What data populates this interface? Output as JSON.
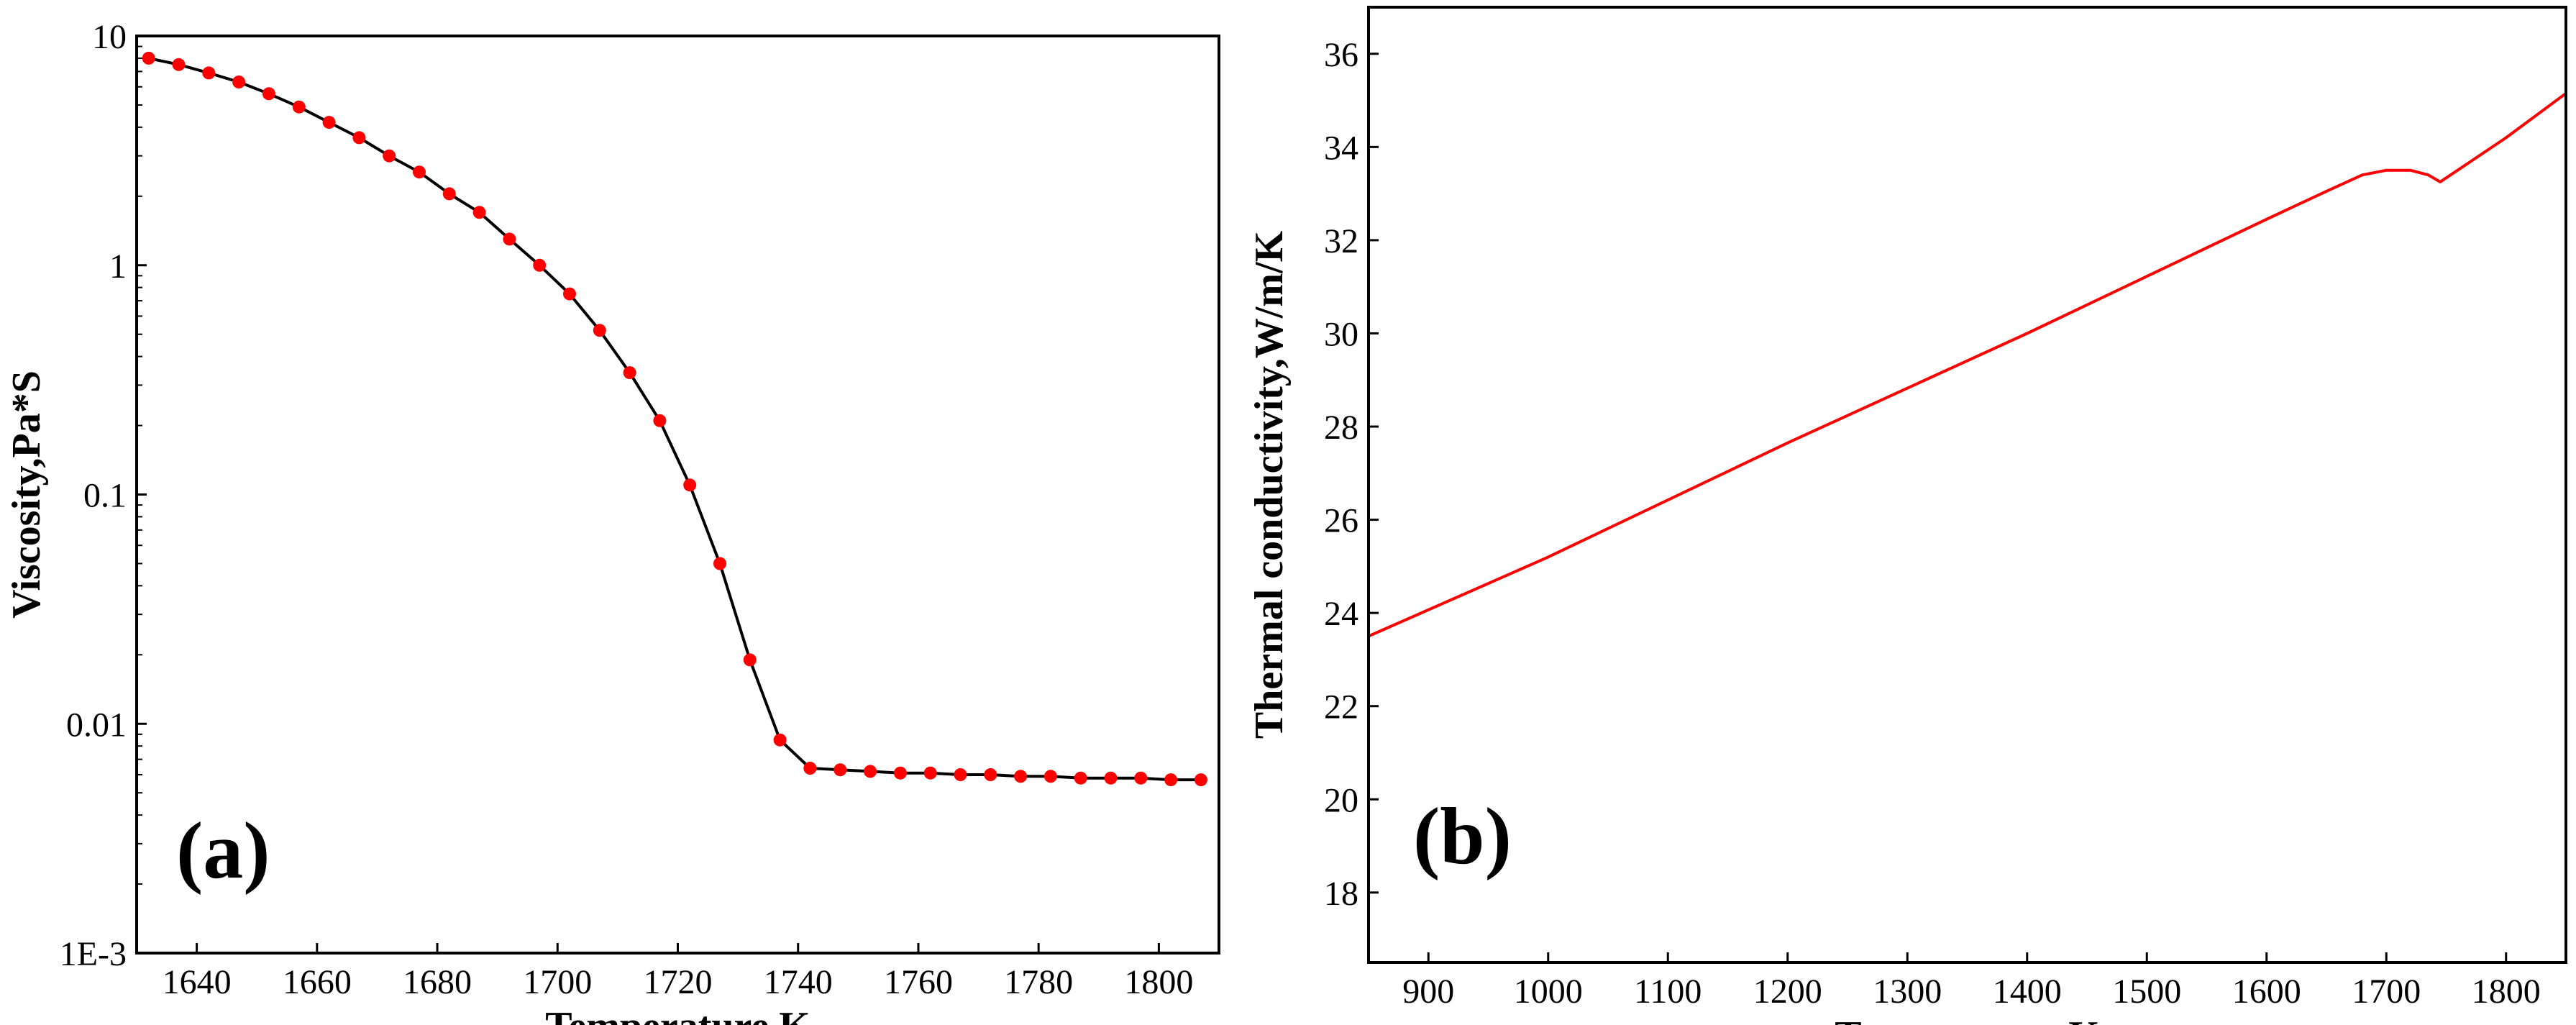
{
  "chart_data": [
    {
      "type": "line",
      "panel_label": "(a)",
      "xlabel": "Temperature,K",
      "ylabel": "Viscosity,Pa*S",
      "yscale": "log",
      "xlim": [
        1630,
        1810
      ],
      "ylim": [
        0.001,
        10
      ],
      "x_ticks": [
        1640,
        1660,
        1680,
        1700,
        1720,
        1740,
        1760,
        1780,
        1800
      ],
      "x_tick_labels": [
        "1640",
        "1660",
        "1680",
        "1700",
        "1720",
        "1740",
        "1760",
        "1780",
        "1800"
      ],
      "y_ticks": [
        0.001,
        0.01,
        0.1,
        1,
        10
      ],
      "y_tick_labels": [
        "1E-3",
        "0.01",
        "0.1",
        "1",
        "10"
      ],
      "series": [
        {
          "name": "viscosity",
          "line_color": "#000000",
          "marker_color": "#ff0000",
          "x": [
            1632,
            1637,
            1642,
            1647,
            1652,
            1657,
            1662,
            1667,
            1672,
            1677,
            1682,
            1687,
            1692,
            1697,
            1702,
            1707,
            1712,
            1717,
            1722,
            1727,
            1732,
            1737,
            1742,
            1747,
            1752,
            1757,
            1762,
            1767,
            1772,
            1777,
            1782,
            1787,
            1792,
            1797,
            1802,
            1807
          ],
          "y": [
            8.0,
            7.5,
            6.9,
            6.3,
            5.6,
            4.9,
            4.2,
            3.6,
            3.0,
            2.55,
            2.05,
            1.7,
            1.3,
            1.0,
            0.75,
            0.52,
            0.34,
            0.21,
            0.11,
            0.05,
            0.019,
            0.0085,
            0.0064,
            0.0063,
            0.0062,
            0.0061,
            0.0061,
            0.006,
            0.006,
            0.0059,
            0.0059,
            0.0058,
            0.0058,
            0.0058,
            0.0057,
            0.0057
          ]
        }
      ]
    },
    {
      "type": "line",
      "panel_label": "(b)",
      "xlabel": "Temperature,K",
      "ylabel": "Thermal conductivity,W/m/K",
      "xlim": [
        850,
        1850
      ],
      "ylim": [
        16.5,
        37
      ],
      "x_ticks": [
        900,
        1000,
        1100,
        1200,
        1300,
        1400,
        1500,
        1600,
        1700,
        1800
      ],
      "x_tick_labels": [
        "900",
        "1000",
        "1100",
        "1200",
        "1300",
        "1400",
        "1500",
        "1600",
        "1700",
        "1800"
      ],
      "y_ticks": [
        18,
        20,
        22,
        24,
        26,
        28,
        30,
        32,
        34,
        36
      ],
      "y_tick_labels": [
        "18",
        "20",
        "22",
        "24",
        "26",
        "28",
        "30",
        "32",
        "34",
        "36"
      ],
      "series": [
        {
          "name": "thermal conductivity",
          "line_color": "#ff0000",
          "x": [
            850,
            1000,
            1200,
            1400,
            1600,
            1650,
            1680,
            1700,
            1720,
            1735,
            1745,
            1800,
            1850
          ],
          "y": [
            23.5,
            25.2,
            27.65,
            30.0,
            32.45,
            33.05,
            33.4,
            33.5,
            33.5,
            33.4,
            33.25,
            34.2,
            35.15
          ]
        }
      ]
    }
  ]
}
